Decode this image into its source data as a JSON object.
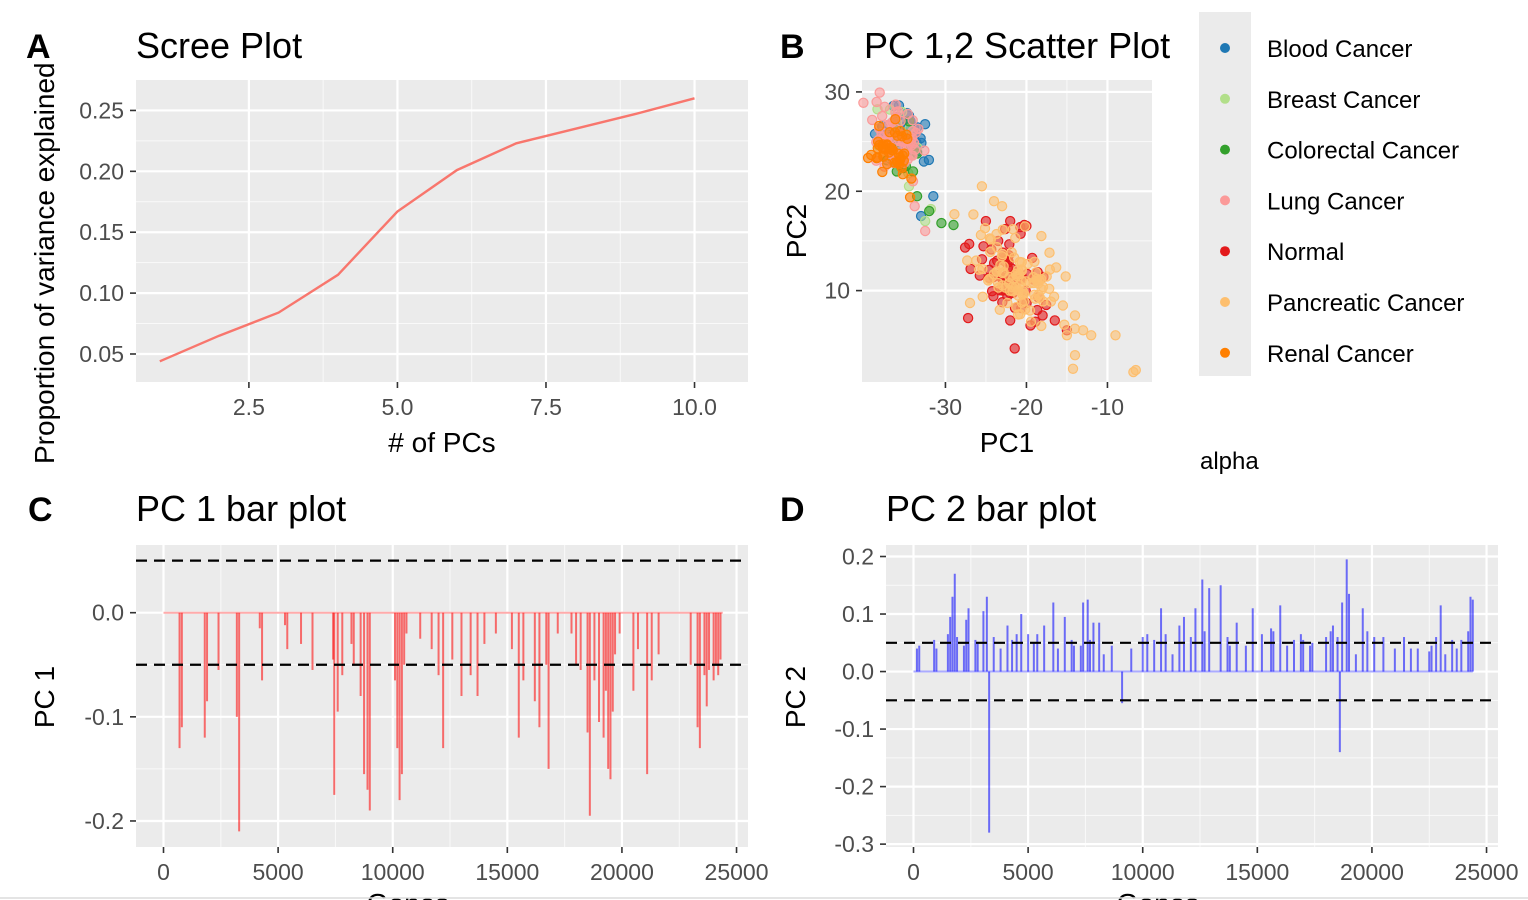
{
  "palette": {
    "scree_line": "#f8766d",
    "pc1_bars": "#ff0000",
    "pc2_bars": "#0000ff"
  },
  "legend": {
    "items": [
      {
        "label": "Blood Cancer",
        "color": "#1f78b4"
      },
      {
        "label": "Breast Cancer",
        "color": "#b2df8a"
      },
      {
        "label": "Colorectal Cancer",
        "color": "#33a02c"
      },
      {
        "label": "Lung Cancer",
        "color": "#fb9a99"
      },
      {
        "label": "Normal",
        "color": "#e31a1c"
      },
      {
        "label": "Pancreatic Cancer",
        "color": "#fdbf6f"
      },
      {
        "label": "Renal Cancer",
        "color": "#ff7f00"
      }
    ],
    "extra_title": "alpha"
  },
  "chart_data": [
    {
      "tag": "A",
      "type": "line",
      "title": "Scree Plot",
      "xlabel": "# of PCs",
      "ylabel": "Proportion of variance explained",
      "x": [
        1,
        2,
        3,
        4,
        5,
        6,
        7,
        8,
        9,
        10
      ],
      "y": [
        0.044,
        0.065,
        0.084,
        0.115,
        0.167,
        0.201,
        0.223,
        0.235,
        0.247,
        0.26
      ],
      "xlim": [
        0.6,
        10.9
      ],
      "ylim": [
        0.027,
        0.275
      ],
      "xticks": [
        2.5,
        5.0,
        7.5,
        10.0
      ],
      "xtick_labels": [
        "2.5",
        "5.0",
        "7.5",
        "10.0"
      ],
      "yticks": [
        0.05,
        0.1,
        0.15,
        0.2,
        0.25
      ],
      "ytick_labels": [
        "0.05",
        "0.10",
        "0.15",
        "0.20",
        "0.25"
      ],
      "grid": true
    },
    {
      "tag": "B",
      "type": "scatter",
      "title": "PC 1,2 Scatter Plot",
      "xlabel": "PC1",
      "ylabel": "PC2",
      "xlim": [
        -40.3,
        -4.5
      ],
      "ylim": [
        0.8,
        31.2
      ],
      "xticks": [
        -30,
        -20,
        -10
      ],
      "xtick_labels": [
        "-30",
        "-20",
        "-10"
      ],
      "yticks": [
        10,
        20,
        30
      ],
      "ytick_labels": [
        "10",
        "20",
        "30"
      ],
      "grid": true,
      "series": [
        {
          "name": "Blood Cancer",
          "color": "#1f78b4",
          "clusters": [
            {
              "cx": -34.5,
              "cy": 26.0,
              "sx": 1.6,
              "sy": 1.3,
              "n": 30
            }
          ],
          "points": [
            [
              -31.5,
              19.5
            ],
            [
              -33.0,
              17.5
            ],
            [
              -33.5,
              24.0
            ]
          ]
        },
        {
          "name": "Breast Cancer",
          "color": "#b2df8a",
          "clusters": [
            {
              "cx": -35.5,
              "cy": 25.0,
              "sx": 1.4,
              "sy": 1.8,
              "n": 14
            }
          ],
          "points": [
            [
              -34.5,
              20.5
            ],
            [
              -31.8,
              18.2
            ],
            [
              -32.5,
              17.0
            ]
          ]
        },
        {
          "name": "Colorectal Cancer",
          "color": "#33a02c",
          "clusters": [
            {
              "cx": -36.0,
              "cy": 24.5,
              "sx": 1.0,
              "sy": 1.5,
              "n": 10
            }
          ],
          "points": [
            [
              -34.0,
              22.0
            ],
            [
              -33.5,
              19.5
            ],
            [
              -32.0,
              18.0
            ],
            [
              -30.5,
              16.8
            ],
            [
              -29.0,
              16.6
            ],
            [
              -36.0,
              22.0
            ]
          ]
        },
        {
          "name": "Lung Cancer",
          "color": "#fb9a99",
          "clusters": [
            {
              "cx": -36.0,
              "cy": 25.5,
              "sx": 1.8,
              "sy": 1.8,
              "n": 55
            }
          ],
          "points": [
            [
              -38.5,
              29.0
            ],
            [
              -37.5,
              28.5
            ],
            [
              -32.5,
              16.0
            ],
            [
              -33.8,
              18.5
            ],
            [
              -34.0,
              21.0
            ]
          ]
        },
        {
          "name": "Normal",
          "color": "#e31a1c",
          "clusters": [
            {
              "cx": -22.5,
              "cy": 11.5,
              "sx": 2.2,
              "sy": 2.0,
              "n": 65
            }
          ],
          "points": [
            [
              -25.0,
              17.0
            ],
            [
              -22.0,
              17.0
            ],
            [
              -20.0,
              16.5
            ],
            [
              -18.0,
              7.5
            ],
            [
              -19.5,
              6.5
            ],
            [
              -22.0,
              7.0
            ],
            [
              -16.5,
              7.0
            ],
            [
              -15.0,
              6.0
            ]
          ]
        },
        {
          "name": "Pancreatic Cancer",
          "color": "#fdbf6f",
          "clusters": [
            {
              "cx": -21.0,
              "cy": 11.0,
              "sx": 3.0,
              "sy": 2.5,
              "n": 100
            }
          ],
          "points": [
            [
              -25.5,
              20.5
            ],
            [
              -24.0,
              19.0
            ],
            [
              -23.0,
              18.5
            ],
            [
              -21.0,
              9.5
            ],
            [
              -15.5,
              8.5
            ],
            [
              -14.0,
              7.5
            ],
            [
              -13.0,
              6.0
            ],
            [
              -12.0,
              5.5
            ],
            [
              -15.0,
              5.5
            ],
            [
              -14.0,
              3.5
            ],
            [
              -9.0,
              5.5
            ],
            [
              -6.5,
              2.0
            ],
            [
              -6.8,
              1.8
            ]
          ]
        },
        {
          "name": "Renal Cancer",
          "color": "#ff7f00",
          "clusters": [
            {
              "cx": -36.5,
              "cy": 24.0,
              "sx": 1.2,
              "sy": 1.4,
              "n": 45
            }
          ],
          "points": []
        }
      ]
    },
    {
      "tag": "C",
      "type": "bar",
      "title": "PC 1 bar plot",
      "xlabel": "Genes",
      "ylabel": "PC 1",
      "xlim": [
        -1200,
        25500
      ],
      "ylim": [
        -0.225,
        0.065
      ],
      "xticks": [
        0,
        5000,
        10000,
        15000,
        20000,
        25000
      ],
      "xtick_labels": [
        "0",
        "5000",
        "10000",
        "15000",
        "20000",
        "25000"
      ],
      "yticks": [
        0.0,
        -0.1,
        -0.2
      ],
      "ytick_labels": [
        "0.0",
        "-0.1",
        "-0.2"
      ],
      "hlines": [
        0.05,
        -0.05
      ],
      "grid": true,
      "bars": [
        [
          700,
          -0.13
        ],
        [
          800,
          -0.11
        ],
        [
          1800,
          -0.12
        ],
        [
          1900,
          -0.085
        ],
        [
          2400,
          -0.055
        ],
        [
          3200,
          -0.1
        ],
        [
          3300,
          -0.21
        ],
        [
          4200,
          -0.015
        ],
        [
          4300,
          -0.065
        ],
        [
          5300,
          -0.012
        ],
        [
          5400,
          -0.035
        ],
        [
          6000,
          -0.03
        ],
        [
          6500,
          -0.055
        ],
        [
          7400,
          -0.045
        ],
        [
          7450,
          -0.175
        ],
        [
          7600,
          -0.095
        ],
        [
          7800,
          -0.06
        ],
        [
          8200,
          -0.03
        ],
        [
          8300,
          -0.05
        ],
        [
          8600,
          -0.08
        ],
        [
          8750,
          -0.155
        ],
        [
          8900,
          -0.17
        ],
        [
          9000,
          -0.19
        ],
        [
          10100,
          -0.065
        ],
        [
          10200,
          -0.13
        ],
        [
          10300,
          -0.18
        ],
        [
          10400,
          -0.155
        ],
        [
          10500,
          -0.05
        ],
        [
          10600,
          -0.02
        ],
        [
          11200,
          -0.025
        ],
        [
          11700,
          -0.035
        ],
        [
          12000,
          -0.06
        ],
        [
          12200,
          -0.13
        ],
        [
          12600,
          -0.045
        ],
        [
          13000,
          -0.08
        ],
        [
          13400,
          -0.06
        ],
        [
          13700,
          -0.08
        ],
        [
          14000,
          -0.03
        ],
        [
          14500,
          -0.02
        ],
        [
          15200,
          -0.035
        ],
        [
          15500,
          -0.12
        ],
        [
          15700,
          -0.065
        ],
        [
          16200,
          -0.085
        ],
        [
          16400,
          -0.11
        ],
        [
          16700,
          -0.05
        ],
        [
          16800,
          -0.15
        ],
        [
          17200,
          -0.02
        ],
        [
          17800,
          -0.02
        ],
        [
          18000,
          -0.05
        ],
        [
          18200,
          -0.055
        ],
        [
          18500,
          -0.115
        ],
        [
          18600,
          -0.195
        ],
        [
          18800,
          -0.065
        ],
        [
          19000,
          -0.105
        ],
        [
          19200,
          -0.12
        ],
        [
          19300,
          -0.075
        ],
        [
          19400,
          -0.15
        ],
        [
          19500,
          -0.16
        ],
        [
          19600,
          -0.095
        ],
        [
          19700,
          -0.04
        ],
        [
          19900,
          -0.02
        ],
        [
          20500,
          -0.075
        ],
        [
          20700,
          -0.035
        ],
        [
          21100,
          -0.155
        ],
        [
          21300,
          -0.065
        ],
        [
          21600,
          -0.04
        ],
        [
          23000,
          -0.05
        ],
        [
          23300,
          -0.11
        ],
        [
          23400,
          -0.13
        ],
        [
          23600,
          -0.06
        ],
        [
          23700,
          -0.09
        ],
        [
          23800,
          -0.055
        ],
        [
          24000,
          -0.065
        ],
        [
          24100,
          -0.05
        ],
        [
          24200,
          -0.06
        ],
        [
          24300,
          -0.045
        ]
      ]
    },
    {
      "tag": "D",
      "type": "bar",
      "title": "PC 2 bar plot",
      "xlabel": "Genes",
      "ylabel": "PC 2",
      "xlim": [
        -1200,
        25500
      ],
      "ylim": [
        -0.305,
        0.22
      ],
      "xticks": [
        0,
        5000,
        10000,
        15000,
        20000,
        25000
      ],
      "xtick_labels": [
        "0",
        "5000",
        "10000",
        "15000",
        "20000",
        "25000"
      ],
      "yticks": [
        0.2,
        0.1,
        0.0,
        -0.1,
        -0.2,
        -0.3
      ],
      "ytick_labels": [
        "0.2",
        "0.1",
        "0.0",
        "-0.1",
        "-0.2",
        "-0.3"
      ],
      "hlines": [
        0.05,
        -0.05
      ],
      "grid": true,
      "bars": [
        [
          150,
          0.04
        ],
        [
          250,
          0.045
        ],
        [
          900,
          0.055
        ],
        [
          1000,
          0.04
        ],
        [
          1500,
          0.065
        ],
        [
          1600,
          0.095
        ],
        [
          1700,
          0.13
        ],
        [
          1800,
          0.17
        ],
        [
          1900,
          0.06
        ],
        [
          2200,
          0.045
        ],
        [
          2300,
          0.09
        ],
        [
          2400,
          0.11
        ],
        [
          2700,
          0.055
        ],
        [
          2800,
          0.05
        ],
        [
          3050,
          0.105
        ],
        [
          3200,
          0.13
        ],
        [
          3300,
          -0.28
        ],
        [
          3500,
          0.06
        ],
        [
          3800,
          0.04
        ],
        [
          4100,
          0.08
        ],
        [
          4300,
          0.055
        ],
        [
          4500,
          0.065
        ],
        [
          4700,
          0.1
        ],
        [
          5000,
          0.065
        ],
        [
          5250,
          0.05
        ],
        [
          5400,
          0.065
        ],
        [
          5700,
          0.08
        ],
        [
          6100,
          0.12
        ],
        [
          6300,
          0.04
        ],
        [
          6600,
          0.095
        ],
        [
          6900,
          0.055
        ],
        [
          7000,
          0.045
        ],
        [
          7300,
          0.045
        ],
        [
          7400,
          0.12
        ],
        [
          7600,
          0.125
        ],
        [
          7700,
          0.055
        ],
        [
          7850,
          0.085
        ],
        [
          8100,
          0.085
        ],
        [
          8300,
          0.03
        ],
        [
          8650,
          0.045
        ],
        [
          9100,
          -0.055
        ],
        [
          9500,
          0.04
        ],
        [
          10000,
          0.06
        ],
        [
          10200,
          0.065
        ],
        [
          10500,
          0.055
        ],
        [
          10800,
          0.11
        ],
        [
          11000,
          0.065
        ],
        [
          11300,
          0.03
        ],
        [
          11600,
          0.08
        ],
        [
          11800,
          0.095
        ],
        [
          12100,
          0.06
        ],
        [
          12300,
          0.11
        ],
        [
          12600,
          0.16
        ],
        [
          12700,
          0.07
        ],
        [
          12900,
          0.145
        ],
        [
          13400,
          0.15
        ],
        [
          13700,
          0.06
        ],
        [
          13800,
          0.045
        ],
        [
          14100,
          0.085
        ],
        [
          14500,
          0.045
        ],
        [
          14800,
          0.11
        ],
        [
          15200,
          0.065
        ],
        [
          15600,
          0.075
        ],
        [
          15700,
          0.07
        ],
        [
          16000,
          0.115
        ],
        [
          16300,
          0.045
        ],
        [
          16600,
          0.055
        ],
        [
          16900,
          0.065
        ],
        [
          17000,
          0.055
        ],
        [
          17300,
          0.045
        ],
        [
          17400,
          0.05
        ],
        [
          18000,
          0.06
        ],
        [
          18200,
          0.07
        ],
        [
          18300,
          0.08
        ],
        [
          18500,
          0.06
        ],
        [
          18600,
          -0.14
        ],
        [
          18700,
          0.12
        ],
        [
          18900,
          0.195
        ],
        [
          19000,
          0.135
        ],
        [
          19300,
          0.03
        ],
        [
          19600,
          0.11
        ],
        [
          19800,
          0.07
        ],
        [
          20100,
          0.06
        ],
        [
          20500,
          0.06
        ],
        [
          21000,
          0.04
        ],
        [
          21400,
          0.06
        ],
        [
          21700,
          0.04
        ],
        [
          22000,
          0.04
        ],
        [
          22500,
          0.035
        ],
        [
          22600,
          0.045
        ],
        [
          22800,
          0.06
        ],
        [
          23000,
          0.115
        ],
        [
          23200,
          0.03
        ],
        [
          23500,
          0.055
        ],
        [
          23700,
          0.04
        ],
        [
          23900,
          0.055
        ],
        [
          24200,
          0.07
        ],
        [
          24300,
          0.13
        ],
        [
          24400,
          0.125
        ]
      ]
    }
  ]
}
